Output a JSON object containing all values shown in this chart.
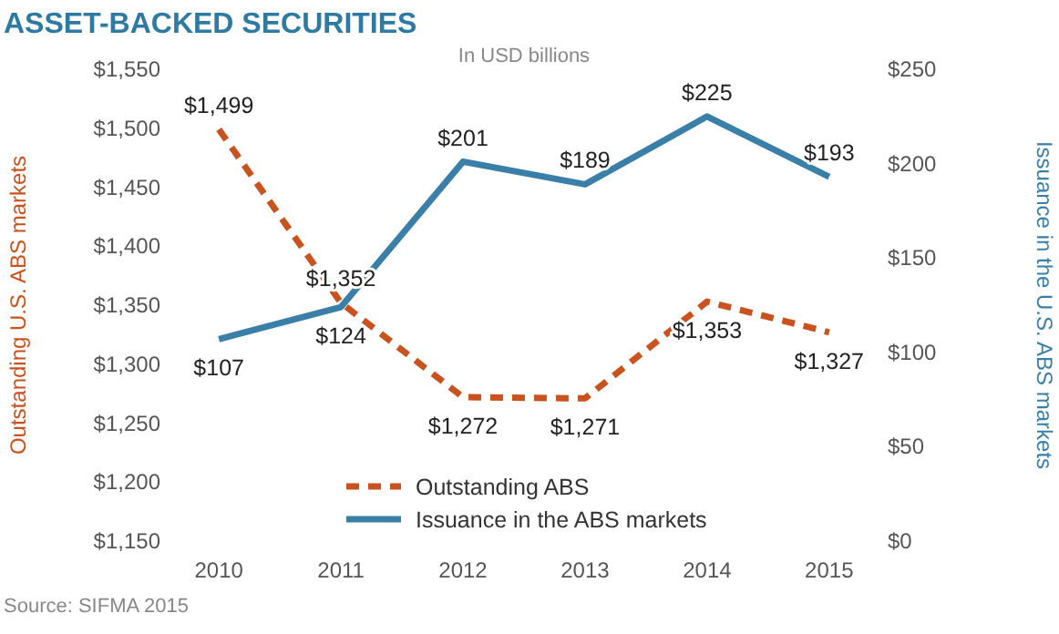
{
  "chart_data": {
    "type": "line",
    "title": "ASSET-BACKED SECURITIES",
    "subtitle": "In USD billions",
    "ylabel": "Outstanding U.S. ABS markets",
    "y2label": "Issuance in the U.S. ABS markets",
    "annotations": [
      "Source: SIFMA 2015"
    ],
    "categories": [
      "2010",
      "2011",
      "2012",
      "2013",
      "2014",
      "2015"
    ],
    "series": [
      {
        "name": "Outstanding ABS",
        "color": "#c9531f",
        "line_style": "dashed",
        "values": [
          1499,
          1352,
          1272,
          1271,
          1353,
          1327
        ],
        "value_labels": [
          "$1,499",
          "$1,352",
          "$1,272",
          "$1,271",
          "$1,353",
          "$1,327"
        ]
      },
      {
        "name": "Issuance in the ABS markets",
        "color": "#3a7fa8",
        "line_style": "solid",
        "axis": "y2",
        "values": [
          107,
          124,
          201,
          189,
          225,
          193
        ],
        "value_labels": [
          "$107",
          "$124",
          "$201",
          "$189",
          "$225",
          "$193"
        ]
      }
    ],
    "ylim": [
      1150,
      1550
    ],
    "yticks": [
      {
        "value": 1150,
        "label": "$1,150"
      },
      {
        "value": 1200,
        "label": "$1,200"
      },
      {
        "value": 1250,
        "label": "$1,250"
      },
      {
        "value": 1300,
        "label": "$1,300"
      },
      {
        "value": 1350,
        "label": "$1,350"
      },
      {
        "value": 1400,
        "label": "$1,400"
      },
      {
        "value": 1450,
        "label": "$1,450"
      },
      {
        "value": 1500,
        "label": "$1,500"
      },
      {
        "value": 1550,
        "label": "$1,550"
      }
    ],
    "y2lim": [
      0,
      250
    ],
    "y2ticks": [
      {
        "value": 0,
        "label": "$0"
      },
      {
        "value": 50,
        "label": "$50"
      },
      {
        "value": 100,
        "label": "$100"
      },
      {
        "value": 150,
        "label": "$150"
      },
      {
        "value": 200,
        "label": "$200"
      },
      {
        "value": 250,
        "label": "$250"
      }
    ],
    "legend": "bottom",
    "grid": false,
    "marker": "none"
  }
}
